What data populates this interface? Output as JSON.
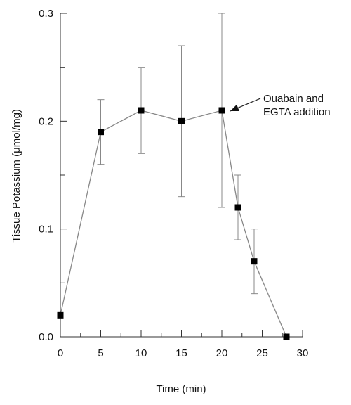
{
  "chart_data": {
    "type": "line",
    "title": "",
    "xlabel": "Time (min)",
    "ylabel": "Tissue Potassium (μmol/mg)",
    "xlim": [
      0,
      30
    ],
    "ylim": [
      0,
      0.3
    ],
    "x_ticks": [
      0,
      5,
      10,
      15,
      20,
      25,
      30
    ],
    "y_ticks": [
      0.0,
      0.1,
      0.2,
      0.3
    ],
    "x_tick_labels": [
      "0",
      "5",
      "10",
      "15",
      "20",
      "25",
      "30"
    ],
    "y_tick_labels": [
      "0.0",
      "0.1",
      "0.2",
      "0.3"
    ],
    "grid": false,
    "series": [
      {
        "marker": "square",
        "color": "#888888",
        "marker_color": "#000000",
        "points": [
          {
            "x": 0,
            "y": 0.02,
            "err": 0
          },
          {
            "x": 5,
            "y": 0.19,
            "err": 0.03
          },
          {
            "x": 10,
            "y": 0.21,
            "err": 0.04
          },
          {
            "x": 15,
            "y": 0.2,
            "err": 0.07
          },
          {
            "x": 20,
            "y": 0.21,
            "err": 0.09
          },
          {
            "x": 22,
            "y": 0.12,
            "err": 0.03
          },
          {
            "x": 24,
            "y": 0.07,
            "err": 0.03
          },
          {
            "x": 28,
            "y": 0.0,
            "err": 0
          }
        ]
      }
    ],
    "annotations": [
      {
        "lines": [
          "Ouabain and",
          "EGTA addition"
        ],
        "points_to": {
          "x": 20,
          "y": 0.21
        }
      }
    ]
  }
}
